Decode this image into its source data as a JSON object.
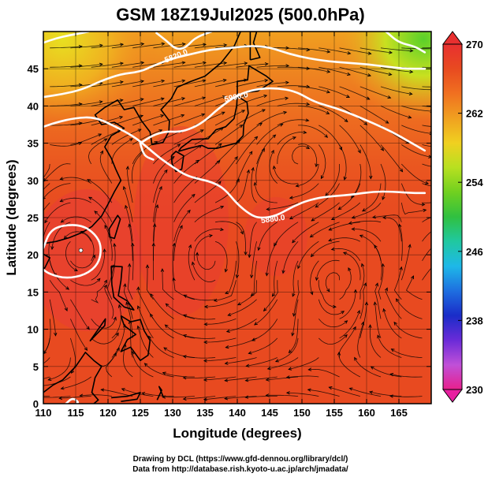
{
  "chart_data": {
    "type": "contour-streamline-map",
    "title": "GSM 18Z19Jul2025 (500.0hPa)",
    "xlabel": "Longitude (degrees)",
    "ylabel": "Latitude  (degrees)",
    "xlim": [
      110,
      170
    ],
    "ylim": [
      0,
      50
    ],
    "xticks": [
      "110",
      "115",
      "120",
      "125",
      "130",
      "135",
      "140",
      "145",
      "150",
      "155",
      "160",
      "165"
    ],
    "yticks": [
      "0",
      "5",
      "10",
      "15",
      "20",
      "25",
      "30",
      "35",
      "40",
      "45"
    ],
    "colorbar": {
      "vmin": 230,
      "vmax": 270,
      "ticks": [
        "230",
        "238",
        "246",
        "254",
        "262",
        "270"
      ],
      "colors": [
        "#e8208c",
        "#c050d8",
        "#6a2bd8",
        "#1a2cc8",
        "#1e6fe0",
        "#1eb8e8",
        "#20c8a0",
        "#30c040",
        "#70d020",
        "#b8e020",
        "#f0d020",
        "#f0a020",
        "#f07020",
        "#e84a20",
        "#e83030"
      ]
    },
    "contours": [
      {
        "label": "5820.0",
        "points": [
          [
            110,
            41.2
          ],
          [
            113,
            41.6
          ],
          [
            116,
            42.2
          ],
          [
            119,
            43.4
          ],
          [
            122,
            44.3
          ],
          [
            125,
            44.6
          ],
          [
            127,
            45.4
          ],
          [
            130,
            46.4
          ],
          [
            133,
            47.0
          ],
          [
            136,
            47.6
          ],
          [
            139,
            47.8
          ],
          [
            142,
            48.1
          ],
          [
            145,
            47.9
          ],
          [
            148,
            47.0
          ],
          [
            151,
            46.4
          ],
          [
            154,
            46.0
          ],
          [
            157,
            45.8
          ],
          [
            160,
            45.6
          ],
          [
            163,
            45.3
          ],
          [
            166,
            45.0
          ],
          [
            169,
            45.0
          ]
        ]
      },
      {
        "label": "5880.0",
        "points": [
          [
            127.5,
            49.8
          ],
          [
            129,
            48.8
          ],
          [
            130.5,
            47.6
          ],
          [
            132,
            47.8
          ],
          [
            133.5,
            49.2
          ],
          [
            136,
            50.0
          ]
        ]
      },
      {
        "label": "5880.0",
        "points": [
          [
            110,
            20.9
          ],
          [
            111,
            23.2
          ],
          [
            113,
            24.0
          ],
          [
            116,
            24.0
          ],
          [
            118,
            22.8
          ],
          [
            119,
            21.2
          ],
          [
            118.6,
            18.8
          ],
          [
            116.5,
            17.3
          ],
          [
            113.5,
            16.8
          ],
          [
            111,
            17.4
          ],
          [
            110,
            18.0
          ]
        ]
      },
      {
        "label": "5880.0",
        "points": [
          [
            113.5,
            0.0
          ],
          [
            114.5,
            0.8
          ],
          [
            115.5,
            0.2
          ],
          [
            115,
            0.0
          ]
        ]
      },
      {
        "label": "5880.0",
        "points": [
          [
            110,
            48.5
          ],
          [
            112,
            49.1
          ],
          [
            114,
            49.5
          ],
          [
            116,
            49.8
          ],
          [
            117,
            50.0
          ]
        ]
      },
      {
        "label": "5880.0",
        "points": [
          [
            163,
            50.0
          ],
          [
            165,
            48.5
          ],
          [
            167.5,
            48.0
          ],
          [
            169,
            47.2
          ]
        ]
      },
      {
        "label": "5880.0",
        "points": [
          [
            110,
            37.2
          ],
          [
            112,
            37.8
          ],
          [
            115,
            38.4
          ],
          [
            118,
            38.5
          ],
          [
            121,
            37.3
          ],
          [
            124,
            35.9
          ],
          [
            126,
            34.5
          ],
          [
            128,
            33.0
          ],
          [
            130,
            31.8
          ],
          [
            132,
            30.7
          ],
          [
            134,
            30.2
          ],
          [
            136,
            29.8
          ],
          [
            138,
            28.9
          ],
          [
            140,
            26.8
          ],
          [
            142,
            25.4
          ],
          [
            143.5,
            24.9
          ],
          [
            146,
            25.2
          ],
          [
            149,
            26.7
          ],
          [
            152,
            27.6
          ],
          [
            155,
            27.9
          ],
          [
            158,
            28.1
          ],
          [
            161,
            28.5
          ],
          [
            164,
            28.5
          ],
          [
            167,
            28.3
          ],
          [
            169,
            28.3
          ]
        ]
      },
      {
        "label": "5900.0",
        "points": [
          [
            125,
            35.0
          ],
          [
            127,
            36.1
          ],
          [
            129,
            36.6
          ],
          [
            131,
            36.5
          ],
          [
            133,
            37.0
          ],
          [
            135,
            38.0
          ],
          [
            137,
            39.6
          ],
          [
            140,
            41.5
          ],
          [
            143,
            42.3
          ],
          [
            146,
            42.4
          ],
          [
            149,
            42.0
          ],
          [
            152,
            40.5
          ],
          [
            155,
            39.8
          ],
          [
            158,
            38.8
          ],
          [
            161,
            37.7
          ],
          [
            164,
            36.5
          ],
          [
            167,
            35.0
          ],
          [
            169,
            34.0
          ]
        ]
      },
      {
        "label": "5900.0",
        "points": [
          [
            125,
            35.0
          ],
          [
            125.3,
            34.0
          ],
          [
            125.8,
            33.2
          ],
          [
            127,
            32.8
          ]
        ]
      }
    ]
  }
}
